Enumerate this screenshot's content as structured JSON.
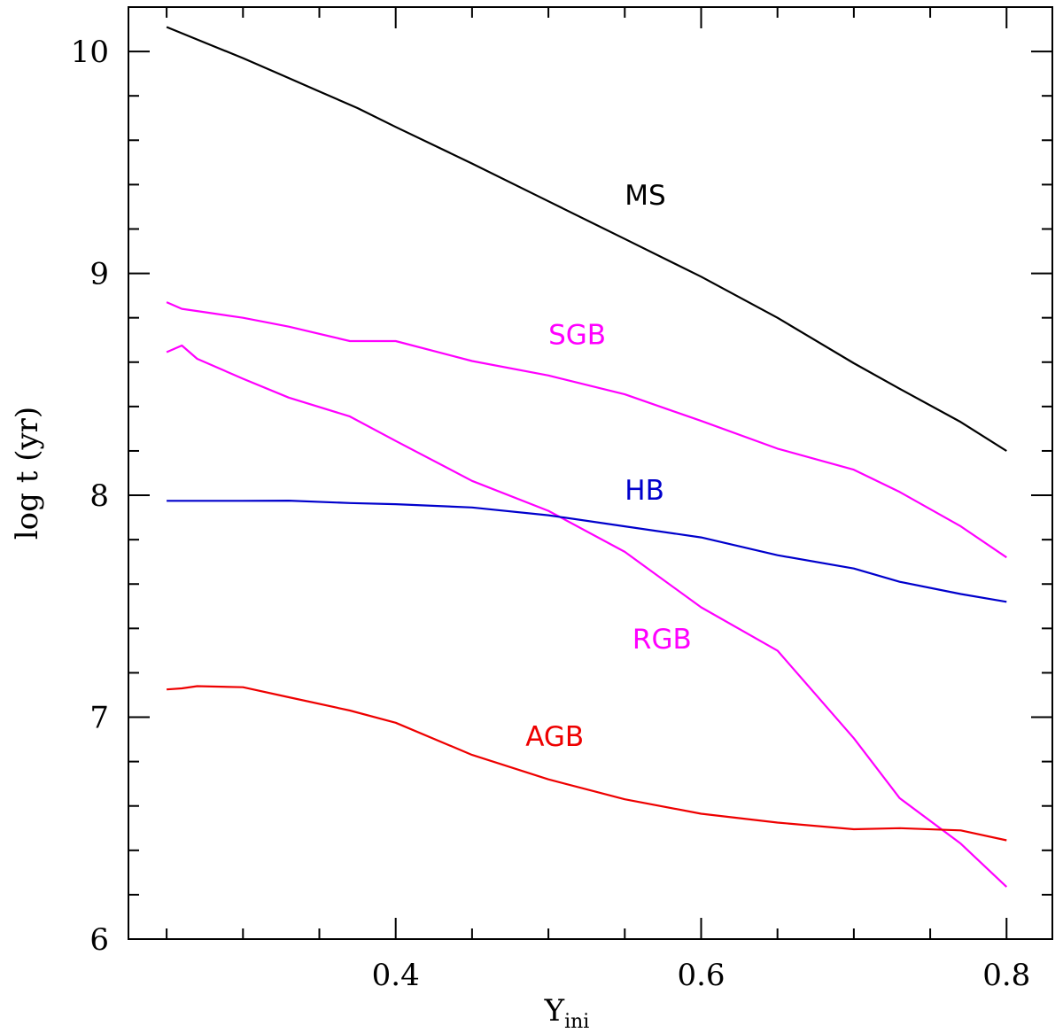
{
  "chart_data": {
    "type": "line",
    "xlabel": "Y",
    "xlabel_sub": "ini",
    "ylabel": "log t  (yr)",
    "xlim": [
      0.225,
      0.83
    ],
    "ylim": [
      6.0,
      10.2
    ],
    "x_major_ticks": [
      0.4,
      0.6,
      0.8
    ],
    "x_tick_labels": [
      "0.4",
      "0.6",
      "0.8"
    ],
    "x_minor_step": 0.05,
    "y_major_ticks": [
      6,
      7,
      8,
      9,
      10
    ],
    "y_tick_labels": [
      "6",
      "7",
      "8",
      "9",
      "10"
    ],
    "y_minor_step": 0.2,
    "grid": false,
    "series": [
      {
        "name": "MS",
        "color": "#000000",
        "label_at": [
          0.55,
          9.31
        ],
        "points": [
          [
            0.25,
            10.11
          ],
          [
            0.275,
            10.04
          ],
          [
            0.3,
            9.97
          ],
          [
            0.325,
            9.895
          ],
          [
            0.35,
            9.82
          ],
          [
            0.375,
            9.745
          ],
          [
            0.4,
            9.66
          ],
          [
            0.45,
            9.495
          ],
          [
            0.5,
            9.325
          ],
          [
            0.55,
            9.155
          ],
          [
            0.6,
            8.985
          ],
          [
            0.65,
            8.8
          ],
          [
            0.7,
            8.595
          ],
          [
            0.73,
            8.48
          ],
          [
            0.77,
            8.33
          ],
          [
            0.8,
            8.2
          ]
        ]
      },
      {
        "name": "SGB",
        "color": "#ff00ff",
        "label_at": [
          0.5,
          8.68
        ],
        "points": [
          [
            0.25,
            8.87
          ],
          [
            0.26,
            8.84
          ],
          [
            0.275,
            8.825
          ],
          [
            0.3,
            8.8
          ],
          [
            0.33,
            8.76
          ],
          [
            0.37,
            8.695
          ],
          [
            0.4,
            8.695
          ],
          [
            0.45,
            8.605
          ],
          [
            0.5,
            8.54
          ],
          [
            0.55,
            8.455
          ],
          [
            0.6,
            8.335
          ],
          [
            0.65,
            8.21
          ],
          [
            0.7,
            8.115
          ],
          [
            0.73,
            8.015
          ],
          [
            0.77,
            7.86
          ],
          [
            0.8,
            7.72
          ]
        ]
      },
      {
        "name": "RGB",
        "color": "#ff00ff",
        "label_at": [
          0.555,
          7.31
        ],
        "points": [
          [
            0.25,
            8.645
          ],
          [
            0.26,
            8.675
          ],
          [
            0.27,
            8.615
          ],
          [
            0.3,
            8.525
          ],
          [
            0.33,
            8.44
          ],
          [
            0.37,
            8.355
          ],
          [
            0.4,
            8.245
          ],
          [
            0.45,
            8.065
          ],
          [
            0.5,
            7.93
          ],
          [
            0.55,
            7.745
          ],
          [
            0.6,
            7.495
          ],
          [
            0.65,
            7.3
          ],
          [
            0.7,
            6.905
          ],
          [
            0.73,
            6.635
          ],
          [
            0.77,
            6.43
          ],
          [
            0.8,
            6.235
          ]
        ]
      },
      {
        "name": "HB",
        "color": "#0000cc",
        "label_at": [
          0.55,
          7.98
        ],
        "points": [
          [
            0.25,
            7.975
          ],
          [
            0.3,
            7.975
          ],
          [
            0.33,
            7.976
          ],
          [
            0.37,
            7.965
          ],
          [
            0.4,
            7.96
          ],
          [
            0.45,
            7.945
          ],
          [
            0.5,
            7.91
          ],
          [
            0.55,
            7.86
          ],
          [
            0.6,
            7.81
          ],
          [
            0.65,
            7.73
          ],
          [
            0.7,
            7.67
          ],
          [
            0.73,
            7.61
          ],
          [
            0.77,
            7.555
          ],
          [
            0.8,
            7.52
          ]
        ]
      },
      {
        "name": "AGB",
        "color": "#ee0000",
        "label_at": [
          0.485,
          6.87
        ],
        "points": [
          [
            0.25,
            7.125
          ],
          [
            0.26,
            7.13
          ],
          [
            0.27,
            7.14
          ],
          [
            0.3,
            7.135
          ],
          [
            0.33,
            7.09
          ],
          [
            0.37,
            7.03
          ],
          [
            0.4,
            6.975
          ],
          [
            0.45,
            6.83
          ],
          [
            0.5,
            6.72
          ],
          [
            0.55,
            6.63
          ],
          [
            0.6,
            6.565
          ],
          [
            0.65,
            6.525
          ],
          [
            0.7,
            6.495
          ],
          [
            0.73,
            6.5
          ],
          [
            0.77,
            6.49
          ],
          [
            0.8,
            6.445
          ]
        ]
      }
    ]
  }
}
